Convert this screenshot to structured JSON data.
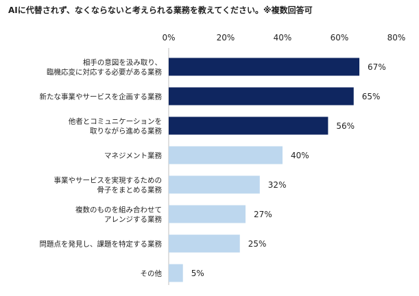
{
  "chart_data": {
    "type": "bar",
    "orientation": "horizontal",
    "title": "AIに代替されず、なくならないと考えられる業務を教えてください。※複数回答可",
    "categories": [
      [
        "相手の意図を汲み取り、",
        "臨機応変に対応する必要がある業務"
      ],
      [
        "新たな事業やサービスを企画する業務"
      ],
      [
        "他者とコミュニケーションを",
        "取りながら進める業務"
      ],
      [
        "マネジメント業務"
      ],
      [
        "事業やサービスを実現するための",
        "骨子をまとめる業務"
      ],
      [
        "複数のものを組み合わせて",
        "アレンジする業務"
      ],
      [
        "問題点を発見し、課題を特定する業務"
      ],
      [
        "その他"
      ]
    ],
    "values": [
      67,
      65,
      56,
      40,
      32,
      27,
      25,
      5
    ],
    "value_labels": [
      "67%",
      "65%",
      "56%",
      "40%",
      "32%",
      "27%",
      "25%",
      "5%"
    ],
    "xlim": [
      0,
      80
    ],
    "x_ticks": [
      "0%",
      "20%",
      "40%",
      "60%",
      "80%"
    ],
    "x_tick_values": [
      0,
      20,
      40,
      60,
      80
    ],
    "grid": false,
    "legend": "none",
    "colors": {
      "highlight": "#0f2660",
      "normal": "#bdd7ee"
    },
    "highlight_count": 3
  }
}
